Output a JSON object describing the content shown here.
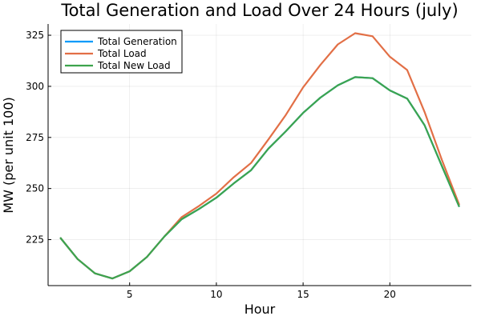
{
  "chart_data": {
    "type": "line",
    "title": "Total Generation and Load Over 24 Hours (july)",
    "xlabel": "Hour",
    "ylabel": "MW (per unit 100)",
    "xlim": [
      0.3,
      24.7
    ],
    "ylim": [
      202.5,
      330.5
    ],
    "xticks": [
      5,
      10,
      15,
      20
    ],
    "yticks": [
      225,
      250,
      275,
      300,
      325
    ],
    "grid": true,
    "legend_position": "top-left",
    "x": [
      1,
      2,
      3,
      4,
      5,
      6,
      7,
      8,
      9,
      10,
      11,
      12,
      13,
      14,
      15,
      16,
      17,
      18,
      19,
      20,
      21,
      22,
      23,
      24
    ],
    "series": [
      {
        "name": "Total Generation",
        "color": "#009AFA",
        "values": [
          226,
          215.5,
          208.5,
          206,
          209.5,
          216.5,
          226.5,
          235,
          240,
          245.5,
          252.5,
          259,
          269.5,
          278,
          287,
          294.5,
          300.5,
          304.5,
          304,
          298,
          294,
          281,
          261,
          241
        ]
      },
      {
        "name": "Total Load",
        "color": "#E26F46",
        "values": [
          226,
          215.5,
          208.5,
          206,
          209.5,
          216.5,
          226.5,
          236,
          241.5,
          247.5,
          255.5,
          262.5,
          274,
          286,
          299.5,
          310.5,
          320.5,
          326,
          324.5,
          314.5,
          308,
          287.5,
          264,
          242
        ]
      },
      {
        "name": "Total New Load",
        "color": "#3DA44D",
        "values": [
          226,
          215.5,
          208.5,
          206,
          209.5,
          216.5,
          226.5,
          235,
          240,
          245.5,
          252.5,
          259,
          269.5,
          278,
          287,
          294.5,
          300.5,
          304.5,
          304,
          298,
          294,
          281,
          261,
          241
        ]
      }
    ]
  }
}
